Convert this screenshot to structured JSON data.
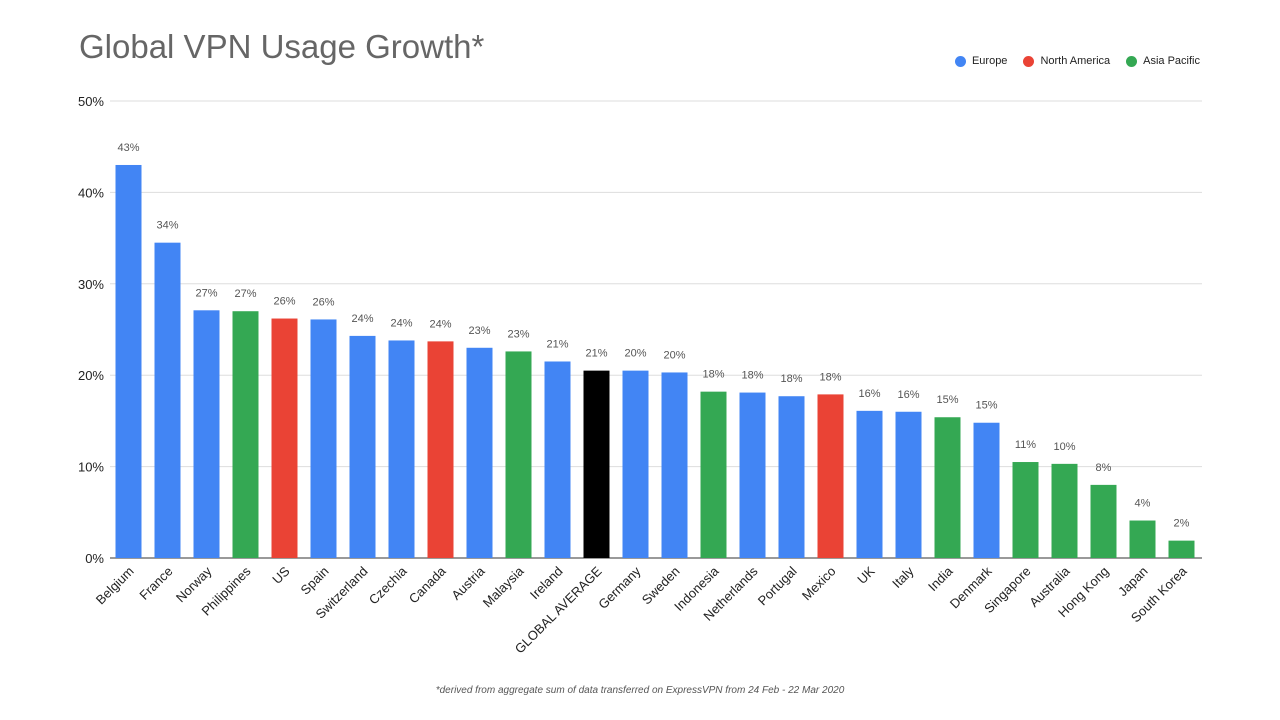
{
  "chart_data": {
    "type": "bar",
    "title": "Global VPN Usage Growth*",
    "xlabel": "",
    "ylabel": "",
    "ylim": [
      0,
      50
    ],
    "yticks": [
      "0%",
      "10%",
      "20%",
      "30%",
      "40%",
      "50%"
    ],
    "grid": true,
    "legend_position": "top-right",
    "legend": [
      {
        "name": "Europe",
        "color": "#4285F4"
      },
      {
        "name": "North America",
        "color": "#EA4335"
      },
      {
        "name": "Asia Pacific",
        "color": "#34A853"
      }
    ],
    "categories": [
      "Belgium",
      "France",
      "Norway",
      "Philippines",
      "US",
      "Spain",
      "Switzerland",
      "Czechia",
      "Canada",
      "Austria",
      "Malaysia",
      "Ireland",
      "GLOBAL AVERAGE",
      "Germany",
      "Sweden",
      "Indonesia",
      "Netherlands",
      "Portugal",
      "Mexico",
      "UK",
      "Italy",
      "India",
      "Denmark",
      "Singapore",
      "Australia",
      "Hong Kong",
      "Japan",
      "South Korea"
    ],
    "values": [
      43.0,
      34.5,
      27.1,
      27.0,
      26.2,
      26.1,
      24.3,
      23.8,
      23.7,
      23.0,
      22.6,
      21.5,
      20.5,
      20.5,
      20.3,
      18.2,
      18.1,
      17.7,
      17.9,
      16.1,
      16.0,
      15.4,
      14.8,
      10.5,
      10.3,
      8.0,
      4.1,
      1.9
    ],
    "data_labels": [
      "43%",
      "34%",
      "27%",
      "27%",
      "26%",
      "26%",
      "24%",
      "24%",
      "24%",
      "23%",
      "23%",
      "21%",
      "21%",
      "20%",
      "20%",
      "18%",
      "18%",
      "18%",
      "18%",
      "16%",
      "16%",
      "15%",
      "15%",
      "11%",
      "10%",
      "8%",
      "4%",
      "2%"
    ],
    "regions": [
      "Europe",
      "Europe",
      "Europe",
      "Asia Pacific",
      "North America",
      "Europe",
      "Europe",
      "Europe",
      "North America",
      "Europe",
      "Asia Pacific",
      "Europe",
      "Global",
      "Europe",
      "Europe",
      "Asia Pacific",
      "Europe",
      "Europe",
      "North America",
      "Europe",
      "Europe",
      "Asia Pacific",
      "Europe",
      "Asia Pacific",
      "Asia Pacific",
      "Asia Pacific",
      "Asia Pacific",
      "Asia Pacific"
    ],
    "region_colors": {
      "Europe": "#4285F4",
      "North America": "#EA4335",
      "Asia Pacific": "#34A853",
      "Global": "#000000"
    },
    "footnote": "*derived from aggregate sum of data transferred on ExpressVPN from 24 Feb - 22 Mar 2020"
  }
}
